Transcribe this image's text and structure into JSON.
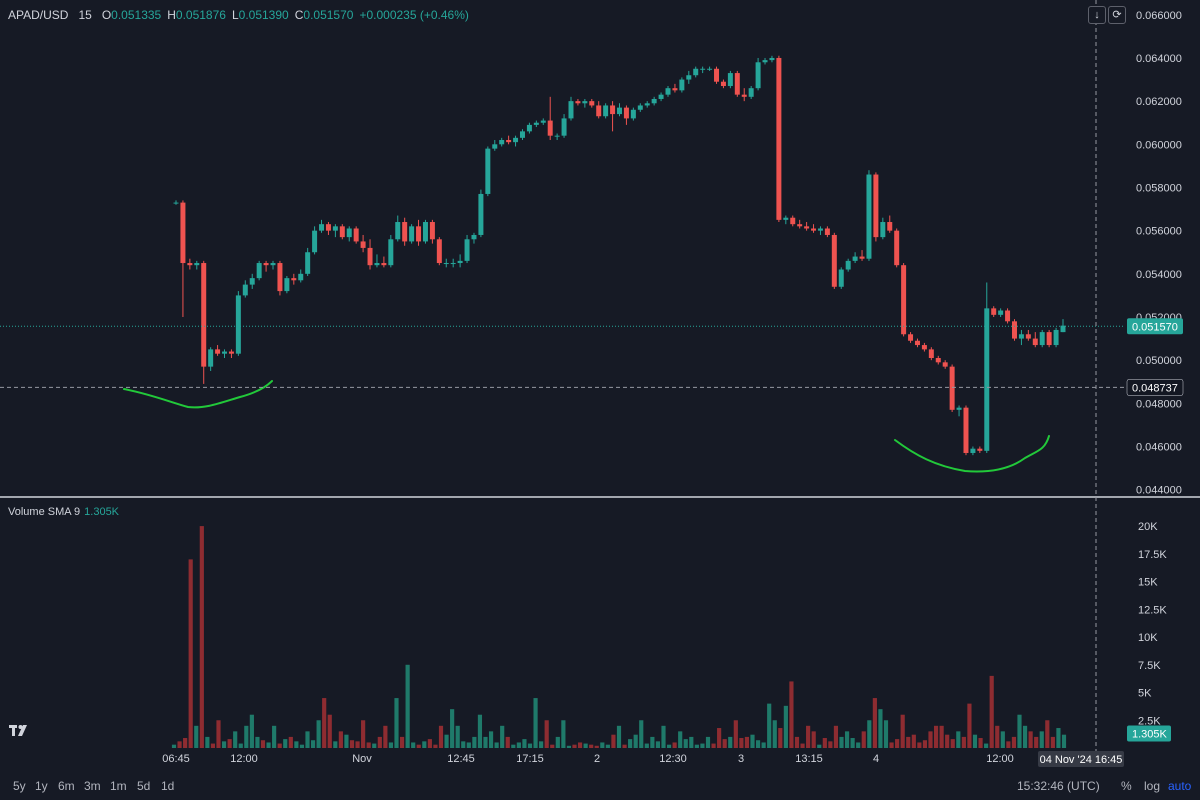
{
  "header": {
    "symbol": "APAD/USD",
    "interval": "15",
    "open_label": "O",
    "open": "0.051335",
    "high_label": "H",
    "high": "0.051876",
    "low_label": "L",
    "low": "0.051390",
    "close_label": "C",
    "close": "0.051570",
    "change": "+0.000235 (+0.46%)"
  },
  "volume_indicator": {
    "label": "Volume SMA 9",
    "value": "1.305K"
  },
  "controls": {
    "down_icon": "arrow-down-icon",
    "reset_icon": "refresh-icon"
  },
  "bottom_bar": {
    "timeframes": [
      "5y",
      "1y",
      "6m",
      "3m",
      "1m",
      "5d",
      "1d"
    ],
    "clock": "15:32:46 (UTC)",
    "percent": "%",
    "log": "log",
    "auto": "auto",
    "logo": "TV"
  },
  "colors": {
    "up": "#26a69a",
    "down": "#ef5350",
    "background": "#161a25",
    "annotation": "#22c93a"
  },
  "chart_data": [
    {
      "type": "candlestick",
      "y_ticks": [
        "0.066000",
        "0.064000",
        "0.062000",
        "0.060000",
        "0.058000",
        "0.056000",
        "0.054000",
        "0.052000",
        "0.050000",
        "0.048000",
        "0.046000",
        "0.044000"
      ],
      "ylim": [
        0.0438,
        0.0665
      ],
      "x_ticks": [
        "06:45",
        "12:00",
        "Nov",
        "12:45",
        "17:15",
        "2",
        "12:30",
        "3",
        "13:15",
        "4",
        "12:00"
      ],
      "last_price_label": "0.051570",
      "crosshair_price_label": "0.048737",
      "crosshair_time_label": "04 Nov '24  16:45",
      "candles": [
        [
          0.0573,
          0.0574,
          0.0572,
          0.0573
        ],
        [
          0.0573,
          0.0574,
          0.052,
          0.0545
        ],
        [
          0.0545,
          0.0547,
          0.0542,
          0.0544
        ],
        [
          0.0544,
          0.0546,
          0.0542,
          0.0545
        ],
        [
          0.0545,
          0.0546,
          0.0489,
          0.0497
        ],
        [
          0.0497,
          0.0506,
          0.0495,
          0.0505
        ],
        [
          0.0505,
          0.0507,
          0.0502,
          0.0503
        ],
        [
          0.0503,
          0.0505,
          0.0501,
          0.0504
        ],
        [
          0.0504,
          0.0505,
          0.0501,
          0.0503
        ],
        [
          0.0503,
          0.0532,
          0.0502,
          0.053
        ],
        [
          0.053,
          0.0537,
          0.0529,
          0.0535
        ],
        [
          0.0535,
          0.054,
          0.0533,
          0.0538
        ],
        [
          0.0538,
          0.0546,
          0.0537,
          0.0545
        ],
        [
          0.0545,
          0.0546,
          0.0541,
          0.0544
        ],
        [
          0.0544,
          0.0546,
          0.0542,
          0.0545
        ],
        [
          0.0545,
          0.0546,
          0.053,
          0.0532
        ],
        [
          0.0532,
          0.0539,
          0.0531,
          0.0538
        ],
        [
          0.0538,
          0.054,
          0.0535,
          0.0537
        ],
        [
          0.0537,
          0.0542,
          0.0536,
          0.054
        ],
        [
          0.054,
          0.0552,
          0.0539,
          0.055
        ],
        [
          0.055,
          0.0562,
          0.0549,
          0.056
        ],
        [
          0.056,
          0.0565,
          0.0559,
          0.0563
        ],
        [
          0.0563,
          0.0564,
          0.0558,
          0.056
        ],
        [
          0.056,
          0.0563,
          0.0557,
          0.0562
        ],
        [
          0.0562,
          0.0563,
          0.0556,
          0.0557
        ],
        [
          0.0557,
          0.0562,
          0.0555,
          0.0561
        ],
        [
          0.0561,
          0.0562,
          0.0554,
          0.0555
        ],
        [
          0.0555,
          0.0558,
          0.055,
          0.0552
        ],
        [
          0.0552,
          0.0556,
          0.0542,
          0.0544
        ],
        [
          0.0544,
          0.0549,
          0.0543,
          0.0545
        ],
        [
          0.0545,
          0.0548,
          0.0543,
          0.0544
        ],
        [
          0.0544,
          0.0558,
          0.0543,
          0.0556
        ],
        [
          0.0556,
          0.0567,
          0.0555,
          0.0564
        ],
        [
          0.0564,
          0.0566,
          0.0553,
          0.0555
        ],
        [
          0.0555,
          0.0563,
          0.0554,
          0.0562
        ],
        [
          0.0562,
          0.0565,
          0.0553,
          0.0555
        ],
        [
          0.0555,
          0.0565,
          0.0554,
          0.0564
        ],
        [
          0.0564,
          0.0565,
          0.0554,
          0.0556
        ],
        [
          0.0556,
          0.0557,
          0.0544,
          0.0545
        ],
        [
          0.0545,
          0.0547,
          0.0543,
          0.0545
        ],
        [
          0.0545,
          0.0547,
          0.0543,
          0.0545
        ],
        [
          0.0545,
          0.0549,
          0.0543,
          0.0546
        ],
        [
          0.0546,
          0.0558,
          0.0545,
          0.0556
        ],
        [
          0.0556,
          0.0559,
          0.0554,
          0.0558
        ],
        [
          0.0558,
          0.0579,
          0.0557,
          0.0577
        ],
        [
          0.0577,
          0.0599,
          0.0576,
          0.0598
        ],
        [
          0.0598,
          0.0602,
          0.0597,
          0.06
        ],
        [
          0.06,
          0.0603,
          0.0599,
          0.0602
        ],
        [
          0.0602,
          0.0604,
          0.06,
          0.0601
        ],
        [
          0.0601,
          0.0604,
          0.0599,
          0.0603
        ],
        [
          0.0603,
          0.0607,
          0.0602,
          0.0606
        ],
        [
          0.0606,
          0.061,
          0.0605,
          0.0609
        ],
        [
          0.0609,
          0.0611,
          0.0608,
          0.061
        ],
        [
          0.061,
          0.0612,
          0.0609,
          0.0611
        ],
        [
          0.0611,
          0.0622,
          0.0602,
          0.0604
        ],
        [
          0.0604,
          0.0605,
          0.0602,
          0.0604
        ],
        [
          0.0604,
          0.0614,
          0.0603,
          0.0612
        ],
        [
          0.0612,
          0.0622,
          0.0611,
          0.062
        ],
        [
          0.062,
          0.0621,
          0.0618,
          0.0619
        ],
        [
          0.0619,
          0.0621,
          0.0617,
          0.062
        ],
        [
          0.062,
          0.0621,
          0.0617,
          0.0618
        ],
        [
          0.0618,
          0.062,
          0.0612,
          0.0613
        ],
        [
          0.0613,
          0.0619,
          0.0612,
          0.0618
        ],
        [
          0.0618,
          0.062,
          0.0606,
          0.0614
        ],
        [
          0.0614,
          0.0619,
          0.0613,
          0.0617
        ],
        [
          0.0617,
          0.0618,
          0.0609,
          0.0612
        ],
        [
          0.0612,
          0.0617,
          0.0611,
          0.0616
        ],
        [
          0.0616,
          0.0619,
          0.0615,
          0.0618
        ],
        [
          0.0618,
          0.062,
          0.0617,
          0.0619
        ],
        [
          0.0619,
          0.0622,
          0.0618,
          0.0621
        ],
        [
          0.0621,
          0.0624,
          0.062,
          0.0623
        ],
        [
          0.0623,
          0.0627,
          0.0622,
          0.0626
        ],
        [
          0.0626,
          0.0628,
          0.0624,
          0.0625
        ],
        [
          0.0625,
          0.0631,
          0.0624,
          0.063
        ],
        [
          0.063,
          0.0634,
          0.0628,
          0.0632
        ],
        [
          0.0632,
          0.0636,
          0.0631,
          0.0635
        ],
        [
          0.0635,
          0.0636,
          0.0633,
          0.0635
        ],
        [
          0.0635,
          0.0636,
          0.0634,
          0.0635
        ],
        [
          0.0635,
          0.0636,
          0.0628,
          0.0629
        ],
        [
          0.0629,
          0.063,
          0.0626,
          0.0627
        ],
        [
          0.0627,
          0.0634,
          0.0626,
          0.0633
        ],
        [
          0.0633,
          0.0634,
          0.0622,
          0.0623
        ],
        [
          0.0623,
          0.0626,
          0.062,
          0.0622
        ],
        [
          0.0622,
          0.0627,
          0.0621,
          0.0626
        ],
        [
          0.0626,
          0.064,
          0.0625,
          0.0638
        ],
        [
          0.0638,
          0.064,
          0.0637,
          0.0639
        ],
        [
          0.0639,
          0.0641,
          0.0638,
          0.064
        ],
        [
          0.064,
          0.0641,
          0.0564,
          0.0565
        ],
        [
          0.0565,
          0.0567,
          0.0563,
          0.0566
        ],
        [
          0.0566,
          0.0567,
          0.0562,
          0.0563
        ],
        [
          0.0563,
          0.0565,
          0.0561,
          0.0562
        ],
        [
          0.0562,
          0.0564,
          0.056,
          0.0561
        ],
        [
          0.0561,
          0.0563,
          0.0559,
          0.056
        ],
        [
          0.056,
          0.0562,
          0.0558,
          0.0561
        ],
        [
          0.0561,
          0.0562,
          0.0557,
          0.0558
        ],
        [
          0.0558,
          0.0559,
          0.0533,
          0.0534
        ],
        [
          0.0534,
          0.0543,
          0.0533,
          0.0542
        ],
        [
          0.0542,
          0.0547,
          0.0541,
          0.0546
        ],
        [
          0.0546,
          0.055,
          0.0545,
          0.0548
        ],
        [
          0.0548,
          0.0551,
          0.0546,
          0.0547
        ],
        [
          0.0547,
          0.0588,
          0.0546,
          0.0586
        ],
        [
          0.0586,
          0.0587,
          0.0555,
          0.0557
        ],
        [
          0.0557,
          0.0566,
          0.0556,
          0.0564
        ],
        [
          0.0564,
          0.0567,
          0.0559,
          0.056
        ],
        [
          0.056,
          0.0561,
          0.0543,
          0.0544
        ],
        [
          0.0544,
          0.0545,
          0.0511,
          0.0512
        ],
        [
          0.0512,
          0.0513,
          0.0508,
          0.0509
        ],
        [
          0.0509,
          0.051,
          0.0506,
          0.0507
        ],
        [
          0.0507,
          0.0508,
          0.0504,
          0.0505
        ],
        [
          0.0505,
          0.0506,
          0.05,
          0.0501
        ],
        [
          0.0501,
          0.0502,
          0.0498,
          0.0499
        ],
        [
          0.0499,
          0.05,
          0.0496,
          0.0497
        ],
        [
          0.0497,
          0.0498,
          0.0476,
          0.0477
        ],
        [
          0.0477,
          0.0479,
          0.0474,
          0.0478
        ],
        [
          0.0478,
          0.0479,
          0.0456,
          0.0457
        ],
        [
          0.0457,
          0.046,
          0.0456,
          0.0459
        ],
        [
          0.0459,
          0.046,
          0.0457,
          0.0458
        ],
        [
          0.0458,
          0.0536,
          0.0457,
          0.0524
        ],
        [
          0.0524,
          0.0525,
          0.052,
          0.0521
        ],
        [
          0.0521,
          0.0524,
          0.052,
          0.0523
        ],
        [
          0.0523,
          0.0524,
          0.0517,
          0.0518
        ],
        [
          0.0518,
          0.0519,
          0.0509,
          0.051
        ],
        [
          0.051,
          0.0514,
          0.0507,
          0.0512
        ],
        [
          0.0512,
          0.0514,
          0.0509,
          0.051
        ],
        [
          0.051,
          0.0513,
          0.0506,
          0.0507
        ],
        [
          0.0507,
          0.0514,
          0.0506,
          0.0513
        ],
        [
          0.0513,
          0.0514,
          0.0506,
          0.0507
        ],
        [
          0.0507,
          0.0515,
          0.0506,
          0.0514
        ],
        [
          0.0513,
          0.0519,
          0.0513,
          0.0516
        ]
      ]
    },
    {
      "type": "bar",
      "title": "Volume SMA 9",
      "y_ticks": [
        "20K",
        "17.5K",
        "15K",
        "12.5K",
        "10K",
        "7.5K",
        "5K",
        "2.5K"
      ],
      "ylim": [
        0,
        21000
      ],
      "last_value_label": "1.305K",
      "values": [
        300,
        600,
        900,
        17000,
        2000,
        20000,
        1000,
        400,
        2500,
        600,
        800,
        1500,
        400,
        2000,
        3000,
        1000,
        700,
        500,
        2000,
        400,
        800,
        1000,
        600,
        300,
        1500,
        700,
        2500,
        4500,
        3000,
        600,
        1500,
        1200,
        700,
        600,
        2500,
        500,
        400,
        1000,
        2000,
        500,
        4500,
        1000,
        7500,
        500,
        300,
        600,
        800,
        300,
        2000,
        1200,
        3500,
        2000,
        600,
        500,
        1000,
        3000,
        1000,
        1500,
        500,
        2000,
        1000,
        300,
        500,
        800,
        400,
        4500,
        600,
        2500,
        300,
        1000,
        2500,
        200,
        300,
        500,
        400,
        300,
        200,
        500,
        300,
        1200,
        2000,
        300,
        800,
        1200,
        2500,
        400,
        1000,
        600,
        2000,
        300,
        500,
        1500,
        800,
        1000,
        300,
        400,
        1000,
        400,
        1800,
        800,
        1000,
        2500,
        900,
        1000,
        1200,
        700,
        500,
        4000,
        2500,
        1800,
        3800,
        6000,
        1000,
        400,
        2000,
        1500,
        300,
        900,
        600,
        2000,
        1000,
        1500,
        900,
        500,
        1500,
        2500,
        4500,
        3500,
        2500,
        500,
        800,
        3000,
        1000,
        1200,
        500,
        700,
        1500,
        2000,
        2000,
        1200,
        800,
        1500,
        1000,
        4000,
        1200,
        900,
        400,
        6500,
        2000,
        1500,
        600,
        1000,
        3000,
        2000,
        1500,
        1000,
        1500,
        2500,
        1000,
        1800,
        1200
      ]
    }
  ]
}
